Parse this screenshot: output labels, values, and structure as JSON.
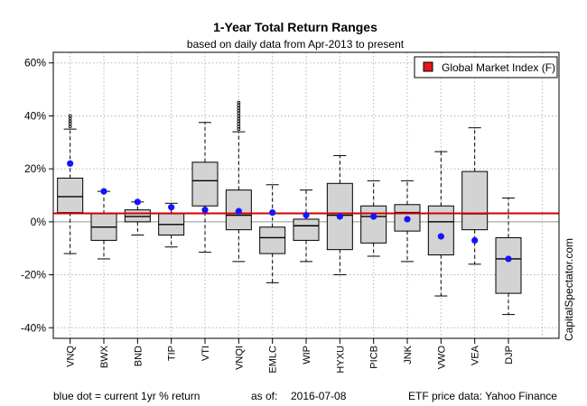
{
  "chart_data": {
    "type": "boxplot",
    "title": "1-Year Total Return Ranges",
    "subtitle": "based on daily data from Apr-2013 to present",
    "ylim": [
      -44,
      64
    ],
    "y_ticks": [
      -40,
      -20,
      0,
      20,
      40,
      60
    ],
    "y_tick_labels": [
      "-40%",
      "-20%",
      "0%",
      "20%",
      "40%",
      "60%"
    ],
    "grid": true,
    "legend": {
      "label": "Global Market Index (F)",
      "position": "top-right",
      "marker_color": "#e8141c"
    },
    "reference_line": {
      "name": "Global Market Index (F)",
      "value": 3.2,
      "color": "#d40000"
    },
    "box_fill": "#d3d3d3",
    "dot_color": "#1414ff",
    "categories": [
      "VNQ",
      "BWX",
      "BND",
      "TIP",
      "VTI",
      "VNQI",
      "EMLC",
      "WIP",
      "HYXU",
      "PICB",
      "JNK",
      "VWO",
      "VEA",
      "DJP"
    ],
    "boxes": [
      {
        "name": "VNQ",
        "min": -12,
        "q1": 3.5,
        "median": 9.5,
        "q3": 16.5,
        "max": 35,
        "outliers": [
          36,
          37,
          38,
          39,
          40
        ],
        "dot": 22
      },
      {
        "name": "BWX",
        "min": -14,
        "q1": -7,
        "median": -2,
        "q3": 3,
        "max": 11.5,
        "outliers": [],
        "dot": 11.5
      },
      {
        "name": "BND",
        "min": -5,
        "q1": 0,
        "median": 2,
        "q3": 4.5,
        "max": 7.5,
        "outliers": [],
        "dot": 7.5
      },
      {
        "name": "TIP",
        "min": -9.5,
        "q1": -5,
        "median": -1,
        "q3": 3,
        "max": 7,
        "outliers": [],
        "dot": 5.5
      },
      {
        "name": "VTI",
        "min": -11.5,
        "q1": 6,
        "median": 15.5,
        "q3": 22.5,
        "max": 37.5,
        "outliers": [],
        "dot": 4.5
      },
      {
        "name": "VNQI",
        "min": -15,
        "q1": -3,
        "median": 2.5,
        "q3": 12,
        "max": 34,
        "outliers": [
          35,
          36,
          37,
          38,
          39,
          40,
          41,
          42,
          43,
          44,
          45
        ],
        "dot": 4
      },
      {
        "name": "EMLC",
        "min": -23,
        "q1": -12,
        "median": -6,
        "q3": -2,
        "max": 14,
        "outliers": [],
        "dot": 3.5
      },
      {
        "name": "WIP",
        "min": -15,
        "q1": -7,
        "median": -1.5,
        "q3": 1,
        "max": 12,
        "outliers": [],
        "dot": 2.5
      },
      {
        "name": "HYXU",
        "min": -20,
        "q1": -10.5,
        "median": 2.5,
        "q3": 14.5,
        "max": 25,
        "outliers": [],
        "dot": 2
      },
      {
        "name": "PICB",
        "min": -13,
        "q1": -8,
        "median": 2,
        "q3": 6,
        "max": 15.5,
        "outliers": [],
        "dot": 2
      },
      {
        "name": "JNK",
        "min": -15,
        "q1": -3.5,
        "median": 3.5,
        "q3": 6.5,
        "max": 15.5,
        "outliers": [],
        "dot": 1
      },
      {
        "name": "VWO",
        "min": -28,
        "q1": -12.5,
        "median": 0,
        "q3": 6,
        "max": 26.5,
        "outliers": [],
        "dot": -5.5
      },
      {
        "name": "VEA",
        "min": -16,
        "q1": -3,
        "median": 3,
        "q3": 19,
        "max": 35.5,
        "outliers": [],
        "dot": -7
      },
      {
        "name": "DJP",
        "min": -35,
        "q1": -27,
        "median": -14,
        "q3": -6,
        "max": 9,
        "outliers": [],
        "dot": -14
      },
      {
        "name": "",
        "placeholder": true
      }
    ]
  },
  "side_label": "CapitalSpectator.com",
  "footer": {
    "note": "blue dot = current 1yr % return",
    "asof_label": "as of:",
    "asof_date": "2016-07-08",
    "source": "ETF price data: Yahoo Finance"
  }
}
